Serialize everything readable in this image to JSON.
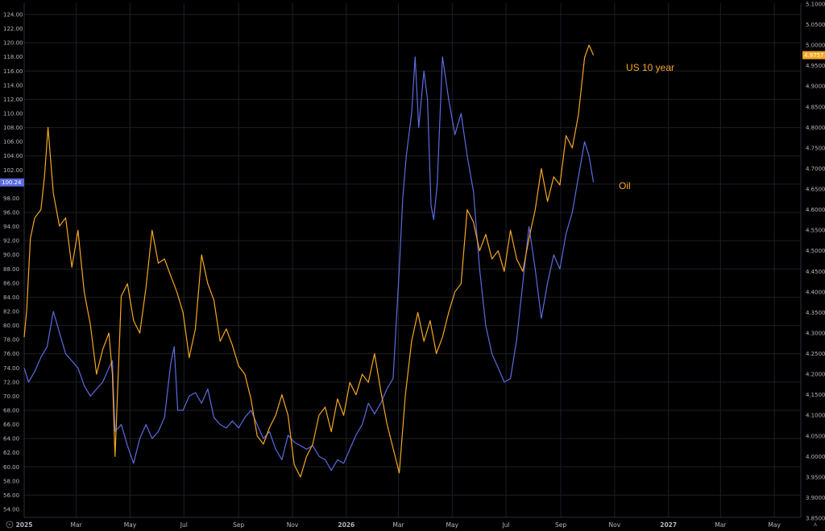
{
  "chart_data": {
    "type": "line",
    "title": "",
    "x_axis": {
      "labels": [
        "2025",
        "Mar",
        "May",
        "Jul",
        "Sep",
        "Nov",
        "2026",
        "Mar",
        "May",
        "Jul",
        "Sep",
        "Nov",
        "2027",
        "Mar",
        "May"
      ],
      "range": [
        "2025-01-01",
        "2027-05-31"
      ]
    },
    "y_left": {
      "ticks": [
        "54.00",
        "56.00",
        "58.00",
        "60.00",
        "62.00",
        "64.00",
        "66.00",
        "68.00",
        "70.00",
        "72.00",
        "74.00",
        "76.00",
        "78.00",
        "80.00",
        "82.00",
        "84.00",
        "86.00",
        "88.00",
        "90.00",
        "92.00",
        "94.00",
        "96.00",
        "98.00",
        "100.00",
        "102.00",
        "104.00",
        "106.00",
        "108.00",
        "110.00",
        "112.00",
        "114.00",
        "116.00",
        "118.00",
        "120.00",
        "122.00",
        "124.00"
      ],
      "range": [
        54,
        124
      ]
    },
    "y_right": {
      "ticks": [
        "3.8500",
        "3.9000",
        "3.9500",
        "4.0000",
        "4.0500",
        "4.1000",
        "4.1500",
        "4.2000",
        "4.2500",
        "4.3000",
        "4.3500",
        "4.4000",
        "4.4500",
        "4.5000",
        "4.5500",
        "4.6000",
        "4.6500",
        "4.7000",
        "4.7500",
        "4.8000",
        "4.8500",
        "4.9000",
        "4.9500",
        "5.0000",
        "5.0500",
        "5.1000"
      ],
      "range": [
        3.85,
        5.1
      ]
    },
    "grid": true,
    "series": [
      {
        "name": "Oil",
        "color": "#5b6be0",
        "axis": "left",
        "last_value_tag": "100.24",
        "points": [
          [
            "2025-01-01",
            74.0
          ],
          [
            "2025-01-06",
            72.0
          ],
          [
            "2025-01-13",
            73.5
          ],
          [
            "2025-01-20",
            75.5
          ],
          [
            "2025-01-27",
            77.0
          ],
          [
            "2025-02-03",
            82.0
          ],
          [
            "2025-02-10",
            79.0
          ],
          [
            "2025-02-17",
            76.0
          ],
          [
            "2025-02-24",
            75.0
          ],
          [
            "2025-03-03",
            74.0
          ],
          [
            "2025-03-10",
            71.5
          ],
          [
            "2025-03-17",
            70.0
          ],
          [
            "2025-03-24",
            71.0
          ],
          [
            "2025-03-31",
            72.0
          ],
          [
            "2025-04-07",
            74.0
          ],
          [
            "2025-04-11",
            75.0
          ],
          [
            "2025-04-14",
            65.0
          ],
          [
            "2025-04-21",
            66.0
          ],
          [
            "2025-04-28",
            63.0
          ],
          [
            "2025-05-05",
            60.5
          ],
          [
            "2025-05-12",
            64.0
          ],
          [
            "2025-05-19",
            66.0
          ],
          [
            "2025-05-26",
            64.0
          ],
          [
            "2025-06-02",
            65.0
          ],
          [
            "2025-06-09",
            67.0
          ],
          [
            "2025-06-16",
            74.5
          ],
          [
            "2025-06-20",
            77.0
          ],
          [
            "2025-06-24",
            68.0
          ],
          [
            "2025-06-30",
            68.0
          ],
          [
            "2025-07-07",
            70.0
          ],
          [
            "2025-07-14",
            70.5
          ],
          [
            "2025-07-21",
            69.0
          ],
          [
            "2025-07-28",
            71.0
          ],
          [
            "2025-08-04",
            67.0
          ],
          [
            "2025-08-11",
            66.0
          ],
          [
            "2025-08-18",
            65.5
          ],
          [
            "2025-08-25",
            66.5
          ],
          [
            "2025-09-01",
            65.5
          ],
          [
            "2025-09-08",
            67.0
          ],
          [
            "2025-09-15",
            68.0
          ],
          [
            "2025-09-22",
            66.0
          ],
          [
            "2025-09-29",
            64.0
          ],
          [
            "2025-10-06",
            65.0
          ],
          [
            "2025-10-13",
            62.5
          ],
          [
            "2025-10-20",
            61.0
          ],
          [
            "2025-10-27",
            64.5
          ],
          [
            "2025-11-03",
            63.5
          ],
          [
            "2025-11-10",
            63.0
          ],
          [
            "2025-11-17",
            62.5
          ],
          [
            "2025-11-24",
            63.0
          ],
          [
            "2025-12-01",
            61.5
          ],
          [
            "2025-12-08",
            61.0
          ],
          [
            "2025-12-15",
            59.5
          ],
          [
            "2025-12-22",
            61.0
          ],
          [
            "2025-12-29",
            60.5
          ],
          [
            "2026-01-05",
            62.5
          ],
          [
            "2026-01-12",
            64.5
          ],
          [
            "2026-01-19",
            66.0
          ],
          [
            "2026-01-26",
            69.0
          ],
          [
            "2026-02-02",
            67.5
          ],
          [
            "2026-02-09",
            69.0
          ],
          [
            "2026-02-16",
            71.0
          ],
          [
            "2026-02-23",
            72.5
          ],
          [
            "2026-03-02",
            88.0
          ],
          [
            "2026-03-06",
            98.0
          ],
          [
            "2026-03-10",
            104.0
          ],
          [
            "2026-03-16",
            110.0
          ],
          [
            "2026-03-20",
            118.0
          ],
          [
            "2026-03-24",
            108.0
          ],
          [
            "2026-03-30",
            116.0
          ],
          [
            "2026-04-03",
            112.0
          ],
          [
            "2026-04-07",
            97.0
          ],
          [
            "2026-04-10",
            95.0
          ],
          [
            "2026-04-14",
            100.0
          ],
          [
            "2026-04-20",
            118.0
          ],
          [
            "2026-04-27",
            112.0
          ],
          [
            "2026-05-04",
            107.0
          ],
          [
            "2026-05-11",
            110.0
          ],
          [
            "2026-05-18",
            104.0
          ],
          [
            "2026-05-25",
            99.0
          ],
          [
            "2026-06-01",
            88.0
          ],
          [
            "2026-06-08",
            80.0
          ],
          [
            "2026-06-15",
            76.0
          ],
          [
            "2026-06-22",
            74.0
          ],
          [
            "2026-06-29",
            72.0
          ],
          [
            "2026-07-06",
            72.5
          ],
          [
            "2026-07-13",
            78.0
          ],
          [
            "2026-07-20",
            86.0
          ],
          [
            "2026-07-27",
            94.0
          ],
          [
            "2026-08-03",
            88.0
          ],
          [
            "2026-08-10",
            81.0
          ],
          [
            "2026-08-17",
            86.0
          ],
          [
            "2026-08-24",
            90.0
          ],
          [
            "2026-08-31",
            88.0
          ],
          [
            "2026-09-07",
            93.0
          ],
          [
            "2026-09-14",
            96.0
          ],
          [
            "2026-09-21",
            101.0
          ],
          [
            "2026-09-28",
            106.0
          ],
          [
            "2026-10-03",
            104.0
          ],
          [
            "2026-10-08",
            100.24
          ]
        ]
      },
      {
        "name": "US 10 year",
        "color": "#f5a623",
        "axis": "right",
        "last_value_tag": "4.9757",
        "points": [
          [
            "2025-01-01",
            4.29
          ],
          [
            "2025-01-04",
            4.36
          ],
          [
            "2025-01-08",
            4.53
          ],
          [
            "2025-01-13",
            4.58
          ],
          [
            "2025-01-20",
            4.6
          ],
          [
            "2025-01-24",
            4.68
          ],
          [
            "2025-01-28",
            4.8
          ],
          [
            "2025-02-03",
            4.64
          ],
          [
            "2025-02-10",
            4.56
          ],
          [
            "2025-02-17",
            4.58
          ],
          [
            "2025-02-24",
            4.46
          ],
          [
            "2025-03-03",
            4.55
          ],
          [
            "2025-03-10",
            4.4
          ],
          [
            "2025-03-17",
            4.32
          ],
          [
            "2025-03-24",
            4.2
          ],
          [
            "2025-03-31",
            4.26
          ],
          [
            "2025-04-07",
            4.3
          ],
          [
            "2025-04-11",
            4.2
          ],
          [
            "2025-04-14",
            4.0
          ],
          [
            "2025-04-21",
            4.39
          ],
          [
            "2025-04-28",
            4.42
          ],
          [
            "2025-05-05",
            4.33
          ],
          [
            "2025-05-12",
            4.3
          ],
          [
            "2025-05-19",
            4.41
          ],
          [
            "2025-05-26",
            4.55
          ],
          [
            "2025-06-02",
            4.47
          ],
          [
            "2025-06-09",
            4.48
          ],
          [
            "2025-06-16",
            4.44
          ],
          [
            "2025-06-23",
            4.4
          ],
          [
            "2025-06-30",
            4.35
          ],
          [
            "2025-07-07",
            4.24
          ],
          [
            "2025-07-14",
            4.31
          ],
          [
            "2025-07-21",
            4.49
          ],
          [
            "2025-07-28",
            4.42
          ],
          [
            "2025-08-04",
            4.38
          ],
          [
            "2025-08-11",
            4.28
          ],
          [
            "2025-08-18",
            4.31
          ],
          [
            "2025-08-25",
            4.27
          ],
          [
            "2025-09-01",
            4.22
          ],
          [
            "2025-09-08",
            4.2
          ],
          [
            "2025-09-15",
            4.14
          ],
          [
            "2025-09-22",
            4.05
          ],
          [
            "2025-09-29",
            4.03
          ],
          [
            "2025-10-06",
            4.07
          ],
          [
            "2025-10-13",
            4.1
          ],
          [
            "2025-10-20",
            4.15
          ],
          [
            "2025-10-27",
            4.1
          ],
          [
            "2025-11-03",
            3.98
          ],
          [
            "2025-11-10",
            3.95
          ],
          [
            "2025-11-17",
            4.0
          ],
          [
            "2025-11-24",
            4.03
          ],
          [
            "2025-12-01",
            4.1
          ],
          [
            "2025-12-08",
            4.12
          ],
          [
            "2025-12-15",
            4.06
          ],
          [
            "2025-12-22",
            4.14
          ],
          [
            "2025-12-29",
            4.1
          ],
          [
            "2026-01-05",
            4.18
          ],
          [
            "2026-01-12",
            4.15
          ],
          [
            "2026-01-19",
            4.2
          ],
          [
            "2026-01-26",
            4.18
          ],
          [
            "2026-02-02",
            4.25
          ],
          [
            "2026-02-09",
            4.16
          ],
          [
            "2026-02-16",
            4.08
          ],
          [
            "2026-02-23",
            4.02
          ],
          [
            "2026-03-02",
            3.96
          ],
          [
            "2026-03-09",
            4.15
          ],
          [
            "2026-03-16",
            4.28
          ],
          [
            "2026-03-23",
            4.35
          ],
          [
            "2026-03-30",
            4.28
          ],
          [
            "2026-04-06",
            4.33
          ],
          [
            "2026-04-13",
            4.25
          ],
          [
            "2026-04-20",
            4.29
          ],
          [
            "2026-04-27",
            4.35
          ],
          [
            "2026-05-04",
            4.4
          ],
          [
            "2026-05-11",
            4.42
          ],
          [
            "2026-05-18",
            4.6
          ],
          [
            "2026-05-25",
            4.57
          ],
          [
            "2026-06-01",
            4.5
          ],
          [
            "2026-06-08",
            4.54
          ],
          [
            "2026-06-15",
            4.48
          ],
          [
            "2026-06-22",
            4.5
          ],
          [
            "2026-06-29",
            4.45
          ],
          [
            "2026-07-06",
            4.55
          ],
          [
            "2026-07-13",
            4.48
          ],
          [
            "2026-07-20",
            4.45
          ],
          [
            "2026-07-27",
            4.53
          ],
          [
            "2026-08-03",
            4.6
          ],
          [
            "2026-08-10",
            4.7
          ],
          [
            "2026-08-17",
            4.62
          ],
          [
            "2026-08-24",
            4.68
          ],
          [
            "2026-08-31",
            4.66
          ],
          [
            "2026-09-07",
            4.78
          ],
          [
            "2026-09-14",
            4.75
          ],
          [
            "2026-09-21",
            4.83
          ],
          [
            "2026-09-28",
            4.97
          ],
          [
            "2026-10-03",
            5.0
          ],
          [
            "2026-10-08",
            4.9757
          ]
        ]
      }
    ],
    "annotations": [
      {
        "text": "US 10 year",
        "series": "US 10 year"
      },
      {
        "text": "Oil",
        "series": "Oil"
      }
    ]
  }
}
